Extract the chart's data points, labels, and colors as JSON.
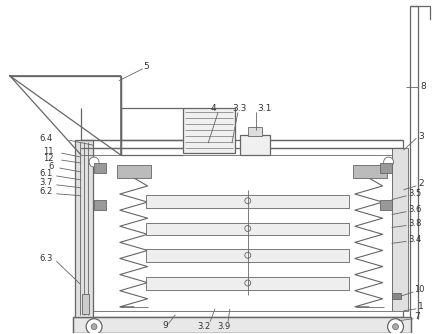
{
  "bg_color": "#ffffff",
  "line_color": "#666666",
  "label_color": "#333333",
  "figsize": [
    4.43,
    3.34
  ],
  "dpi": 100,
  "lw_main": 0.9,
  "lw_thin": 0.6
}
